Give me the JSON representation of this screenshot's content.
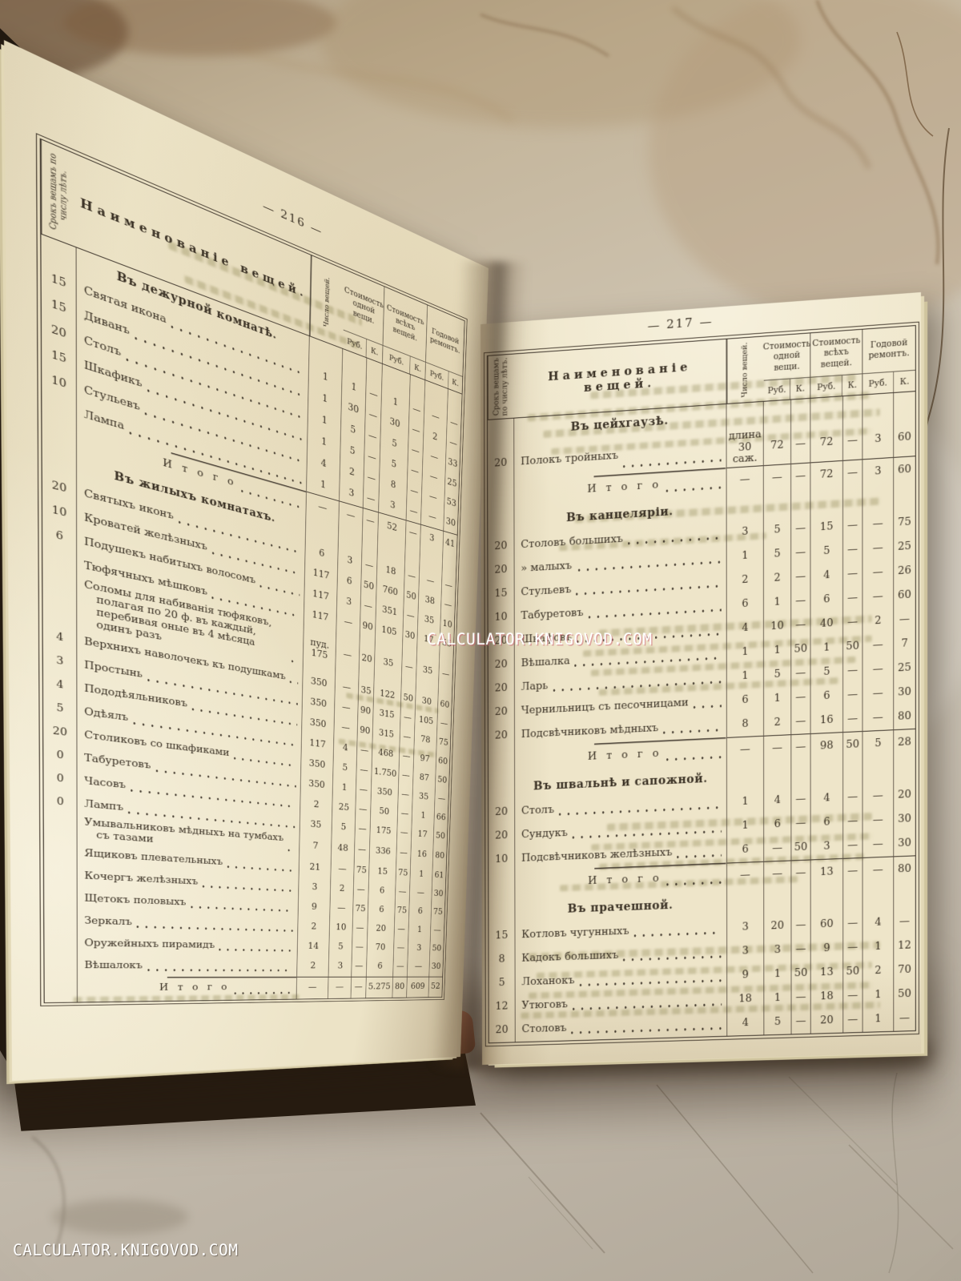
{
  "watermark": {
    "center": "CALCULATOR.KNIGOVOD.COM",
    "bottom": "CALCULATOR.KNIGOVOD.COM"
  },
  "columns": {
    "term": "Срокъ вещамъ по числу лѣтъ.",
    "name": "Наименованіе вещей.",
    "qty": "Число вещей.",
    "cost_one": "Стоимость одной вещи.",
    "cost_all": "Стоимость всѣхъ вещей.",
    "repair": "Годовой ремонтъ.",
    "rub": "Руб.",
    "kop": "К.",
    "total_label": "И т о г о"
  },
  "pages": [
    {
      "number": "— 216 —",
      "sections": [
        {
          "title": "Въ дежурной комнатѣ.",
          "rows": [
            [
              "15",
              "Святая икона",
              "1",
              "1",
              "—",
              "1",
              "—",
              "—",
              "—"
            ],
            [
              "15",
              "Диванъ",
              "1",
              "30",
              "—",
              "30",
              "—",
              "2",
              "—"
            ],
            [
              "20",
              "Столъ",
              "1",
              "5",
              "—",
              "5",
              "—",
              "—",
              "33"
            ],
            [
              "15",
              "Шкафикъ",
              "1",
              "5",
              "—",
              "5",
              "—",
              "—",
              "25"
            ],
            [
              "10",
              "Стульевъ",
              "4",
              "2",
              "—",
              "8",
              "—",
              "—",
              "53"
            ],
            [
              "",
              "Лампа",
              "1",
              "3",
              "—",
              "3",
              "—",
              "—",
              "30"
            ]
          ],
          "total": [
            "—",
            "—",
            "—",
            "52",
            "—",
            "3",
            "41"
          ]
        },
        {
          "title": "Въ жилыхъ комнатахъ.",
          "rows": [
            [
              "20",
              "Святыхъ иконъ",
              "6",
              "3",
              "—",
              "18",
              "—",
              "—",
              "—"
            ],
            [
              "10",
              "Кроватей желѣзныхъ",
              "117",
              "6",
              "50",
              "760",
              "50",
              "38",
              "—"
            ],
            [
              "6",
              "Подушекъ набитыхъ волосомъ",
              "117",
              "3",
              "—",
              "351",
              "—",
              "35",
              "10"
            ],
            [
              "",
              "Тюфячныхъ мѣшковъ",
              "117",
              "—",
              "90",
              "105",
              "30",
              "17",
              "55"
            ],
            [
              "",
              "Соломы для набиванія тюфяковъ, полагая по 20 ф. въ каждый, перебивая оные въ 4 мѣсяца одинъ разъ",
              "пуд. 175",
              "—",
              "20",
              "35",
              "—",
              "35",
              "—"
            ],
            [
              "4",
              "Верхнихъ наволочекъ къ подушкамъ",
              "350",
              "—",
              "35",
              "122",
              "50",
              "30",
              "60"
            ],
            [
              "3",
              "Простынь",
              "350",
              "—",
              "90",
              "315",
              "—",
              "105",
              "—"
            ],
            [
              "4",
              "Пододѣяльниковъ",
              "350",
              "—",
              "90",
              "315",
              "—",
              "78",
              "75"
            ],
            [
              "5",
              "Одѣялъ",
              "117",
              "4",
              "—",
              "468",
              "—",
              "97",
              "60"
            ],
            [
              "20",
              "Столиковъ со шкафиками",
              "350",
              "5",
              "—",
              "1.750",
              "—",
              "87",
              "50"
            ],
            [
              "0",
              "Табуретовъ",
              "350",
              "1",
              "—",
              "350",
              "—",
              "35",
              "—"
            ],
            [
              "0",
              "Часовъ",
              "2",
              "25",
              "—",
              "50",
              "—",
              "1",
              "66"
            ],
            [
              "0",
              "Лампъ",
              "35",
              "5",
              "—",
              "175",
              "—",
              "17",
              "50"
            ],
            [
              "",
              "Умывальниковъ мѣдныхъ на тумбахъ съ тазами",
              "7",
              "48",
              "—",
              "336",
              "—",
              "16",
              "80"
            ],
            [
              "",
              "Ящиковъ плевательныхъ",
              "21",
              "—",
              "75",
              "15",
              "75",
              "1",
              "61"
            ],
            [
              "",
              "Кочергъ желѣзныхъ",
              "3",
              "2",
              "—",
              "6",
              "—",
              "—",
              "30"
            ],
            [
              "",
              "Щетокъ половыхъ",
              "9",
              "—",
              "75",
              "6",
              "75",
              "6",
              "75"
            ],
            [
              "",
              "Зеркалъ",
              "2",
              "10",
              "—",
              "20",
              "—",
              "1",
              "—"
            ],
            [
              "",
              "Оружейныхъ пирамидъ",
              "14",
              "5",
              "—",
              "70",
              "—",
              "3",
              "50"
            ],
            [
              "",
              "Вѣшалокъ",
              "2",
              "3",
              "—",
              "6",
              "—",
              "—",
              "30"
            ]
          ],
          "total": [
            "—",
            "—",
            "—",
            "5.275",
            "80",
            "609",
            "52"
          ]
        }
      ]
    },
    {
      "number": "— 217 —",
      "sections": [
        {
          "title": "Въ цейхгаузѣ.",
          "rows": [
            [
              "20",
              "Полокъ тройныхъ",
              "длина 30 саж.",
              "72",
              "—",
              "72",
              "—",
              "3",
              "60"
            ]
          ],
          "total": [
            "—",
            "—",
            "—",
            "72",
            "—",
            "3",
            "60"
          ]
        },
        {
          "title": "Въ канцеляріи.",
          "rows": [
            [
              "20",
              "Столовъ большихъ",
              "3",
              "5",
              "—",
              "15",
              "—",
              "—",
              "75"
            ],
            [
              "20",
              "»  малыхъ",
              "1",
              "5",
              "—",
              "5",
              "—",
              "—",
              "25"
            ],
            [
              "15",
              "Стульевъ",
              "2",
              "2",
              "—",
              "4",
              "—",
              "—",
              "26"
            ],
            [
              "10",
              "Табуретовъ",
              "6",
              "1",
              "—",
              "6",
              "—",
              "—",
              "60"
            ],
            [
              "20",
              "Шкафовъ",
              "4",
              "10",
              "—",
              "40",
              "—",
              "2",
              "—"
            ],
            [
              "20",
              "Вѣшалка",
              "1",
              "1",
              "50",
              "1",
              "50",
              "—",
              "7"
            ],
            [
              "20",
              "Ларь",
              "1",
              "5",
              "—",
              "5",
              "—",
              "—",
              "25"
            ],
            [
              "20",
              "Чернильницъ съ песочницами",
              "6",
              "1",
              "—",
              "6",
              "—",
              "—",
              "30"
            ],
            [
              "20",
              "Подсвѣчниковъ мѣдныхъ",
              "8",
              "2",
              "—",
              "16",
              "—",
              "—",
              "80"
            ]
          ],
          "total": [
            "—",
            "—",
            "—",
            "98",
            "50",
            "5",
            "28"
          ]
        },
        {
          "title": "Въ швальнѣ и сапожной.",
          "rows": [
            [
              "20",
              "Столъ",
              "1",
              "4",
              "—",
              "4",
              "—",
              "—",
              "20"
            ],
            [
              "20",
              "Сундукъ",
              "1",
              "6",
              "—",
              "6",
              "—",
              "—",
              "30"
            ],
            [
              "10",
              "Подсвѣчниковъ желѣзныхъ",
              "6",
              "—",
              "50",
              "3",
              "—",
              "—",
              "30"
            ]
          ],
          "total": [
            "—",
            "—",
            "—",
            "13",
            "—",
            "—",
            "80"
          ]
        },
        {
          "title": "Въ прачешной.",
          "rows": [
            [
              "15",
              "Котловъ чугунныхъ",
              "3",
              "20",
              "—",
              "60",
              "—",
              "4",
              "—"
            ],
            [
              "8",
              "Кадокъ большихъ",
              "3",
              "3",
              "—",
              "9",
              "—",
              "1",
              "12"
            ],
            [
              "5",
              "Лоханокъ",
              "9",
              "1",
              "50",
              "13",
              "50",
              "2",
              "70"
            ],
            [
              "12",
              "Утюговъ",
              "18",
              "1",
              "—",
              "18",
              "—",
              "1",
              "50"
            ],
            [
              "20",
              "Столовъ",
              "4",
              "5",
              "—",
              "20",
              "—",
              "1",
              "—"
            ]
          ]
        }
      ]
    }
  ]
}
